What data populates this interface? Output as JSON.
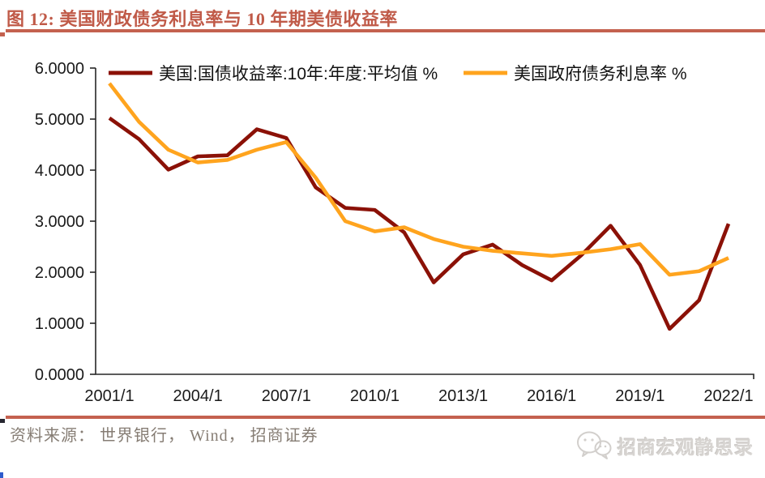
{
  "page": {
    "title": "图 12:  美国财政债务利息率与 10 年期美债收益率",
    "source_note": "资料来源： 世界银行， Wind， 招商证券",
    "watermark_text": "招商宏观静思录",
    "accent_color": "#C4614F"
  },
  "chart_data": {
    "type": "line",
    "title": "美国财政债务利息率与10年期美债收益率",
    "x": [
      2001,
      2002,
      2003,
      2004,
      2005,
      2006,
      2007,
      2008,
      2009,
      2010,
      2011,
      2012,
      2013,
      2014,
      2015,
      2016,
      2017,
      2018,
      2019,
      2020,
      2021,
      2022
    ],
    "x_ticks": [
      2001,
      2004,
      2007,
      2010,
      2013,
      2016,
      2019,
      2022
    ],
    "x_tick_labels": [
      "2001/1",
      "2004/1",
      "2007/1",
      "2010/1",
      "2013/1",
      "2016/1",
      "2019/1",
      "2022/1"
    ],
    "ylim": [
      0,
      6
    ],
    "y_ticks": [
      0,
      1,
      2,
      3,
      4,
      5,
      6
    ],
    "y_tick_labels": [
      "0.0000",
      "1.0000",
      "2.0000",
      "3.0000",
      "4.0000",
      "5.0000",
      "6.0000"
    ],
    "grid": false,
    "legend_position": "top-inside",
    "series": [
      {
        "name": "美国:国债收益率:10年:年度:平均值 %",
        "color": "#8B1107",
        "values": [
          5.02,
          4.61,
          4.01,
          4.27,
          4.29,
          4.8,
          4.63,
          3.66,
          3.26,
          3.22,
          2.78,
          1.8,
          2.35,
          2.54,
          2.14,
          1.84,
          2.33,
          2.91,
          2.14,
          0.89,
          1.45,
          2.95
        ]
      },
      {
        "name": "美国政府债务利息率 %",
        "color": "#FFA41E",
        "values": [
          5.7,
          4.95,
          4.4,
          4.15,
          4.2,
          4.4,
          4.55,
          3.85,
          3.0,
          2.8,
          2.88,
          2.65,
          2.5,
          2.42,
          2.37,
          2.32,
          2.38,
          2.45,
          2.55,
          1.95,
          2.02,
          2.28
        ]
      }
    ],
    "axis_color": "#262626",
    "tick_label_color": "#1a1a1a"
  }
}
